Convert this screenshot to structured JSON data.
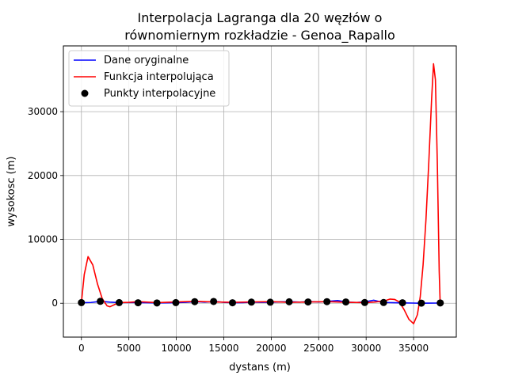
{
  "chart_data": {
    "type": "line",
    "title_lines": [
      "Interpolacja Lagranga dla 20 węzłów o",
      "równomiernym rozkładzie - Genoa_Rapallo"
    ],
    "xlabel": "dystans (m)",
    "ylabel": "wysokosc (m)",
    "xlim": [
      -1900,
      39500
    ],
    "ylim": [
      -5300,
      40300
    ],
    "xticks": [
      0,
      5000,
      10000,
      15000,
      20000,
      25000,
      30000,
      35000
    ],
    "yticks": [
      0,
      10000,
      20000,
      30000
    ],
    "grid": true,
    "legend_position": "upper-left",
    "legend": [
      "Dane oryginalne",
      "Funkcja interpolująca",
      "Punkty interpolacyjne"
    ],
    "series": [
      {
        "name": "Dane oryginalne",
        "kind": "line",
        "color": "#0000ff",
        "x": [
          0,
          1000,
          2000,
          3000,
          4000,
          5000,
          6000,
          7000,
          8000,
          9000,
          10000,
          11000,
          12000,
          13000,
          14000,
          15000,
          16000,
          17000,
          18000,
          19000,
          20000,
          21000,
          22000,
          23000,
          24000,
          25000,
          26000,
          27000,
          28000,
          29000,
          30000,
          30800,
          31800,
          33000,
          34000,
          35000,
          35700,
          36500,
          37300,
          37800
        ],
        "y": [
          80,
          120,
          300,
          180,
          100,
          120,
          90,
          80,
          50,
          60,
          90,
          140,
          250,
          180,
          280,
          150,
          80,
          100,
          180,
          140,
          160,
          220,
          240,
          180,
          260,
          200,
          300,
          420,
          180,
          120,
          250,
          480,
          120,
          80,
          50,
          30,
          10,
          20,
          30,
          40
        ]
      },
      {
        "name": "Funkcja interpolująca",
        "kind": "line",
        "color": "#ff0000",
        "x": [
          0,
          300,
          700,
          1200,
          1700,
          2200,
          2700,
          3000,
          3500,
          4000,
          5000,
          6000,
          8000,
          10000,
          12000,
          14000,
          16000,
          18000,
          20000,
          22000,
          24000,
          26000,
          28000,
          30000,
          31000,
          32000,
          32500,
          33000,
          33500,
          34000,
          34500,
          35000,
          35400,
          35700,
          36000,
          36300,
          36600,
          36900,
          37100,
          37300,
          37500,
          37700,
          37800
        ],
        "y": [
          100,
          4500,
          7300,
          6000,
          3000,
          700,
          -400,
          -550,
          -200,
          100,
          150,
          250,
          100,
          200,
          300,
          200,
          150,
          200,
          250,
          150,
          200,
          250,
          150,
          100,
          200,
          400,
          650,
          600,
          200,
          -1000,
          -2500,
          -3200,
          -1800,
          1000,
          6000,
          13000,
          22000,
          32000,
          37500,
          35000,
          22000,
          5000,
          0
        ]
      },
      {
        "name": "Punkty interpolacyjne",
        "kind": "points",
        "color": "#000000",
        "x": [
          0,
          1990,
          3980,
          5970,
          7960,
          9950,
          11940,
          13930,
          15920,
          17910,
          19900,
          21890,
          23880,
          25870,
          27860,
          29850,
          31840,
          33830,
          35820,
          37810
        ],
        "y": [
          100,
          300,
          100,
          80,
          50,
          100,
          250,
          280,
          80,
          180,
          160,
          230,
          200,
          250,
          200,
          120,
          120,
          80,
          20,
          50
        ]
      }
    ]
  }
}
